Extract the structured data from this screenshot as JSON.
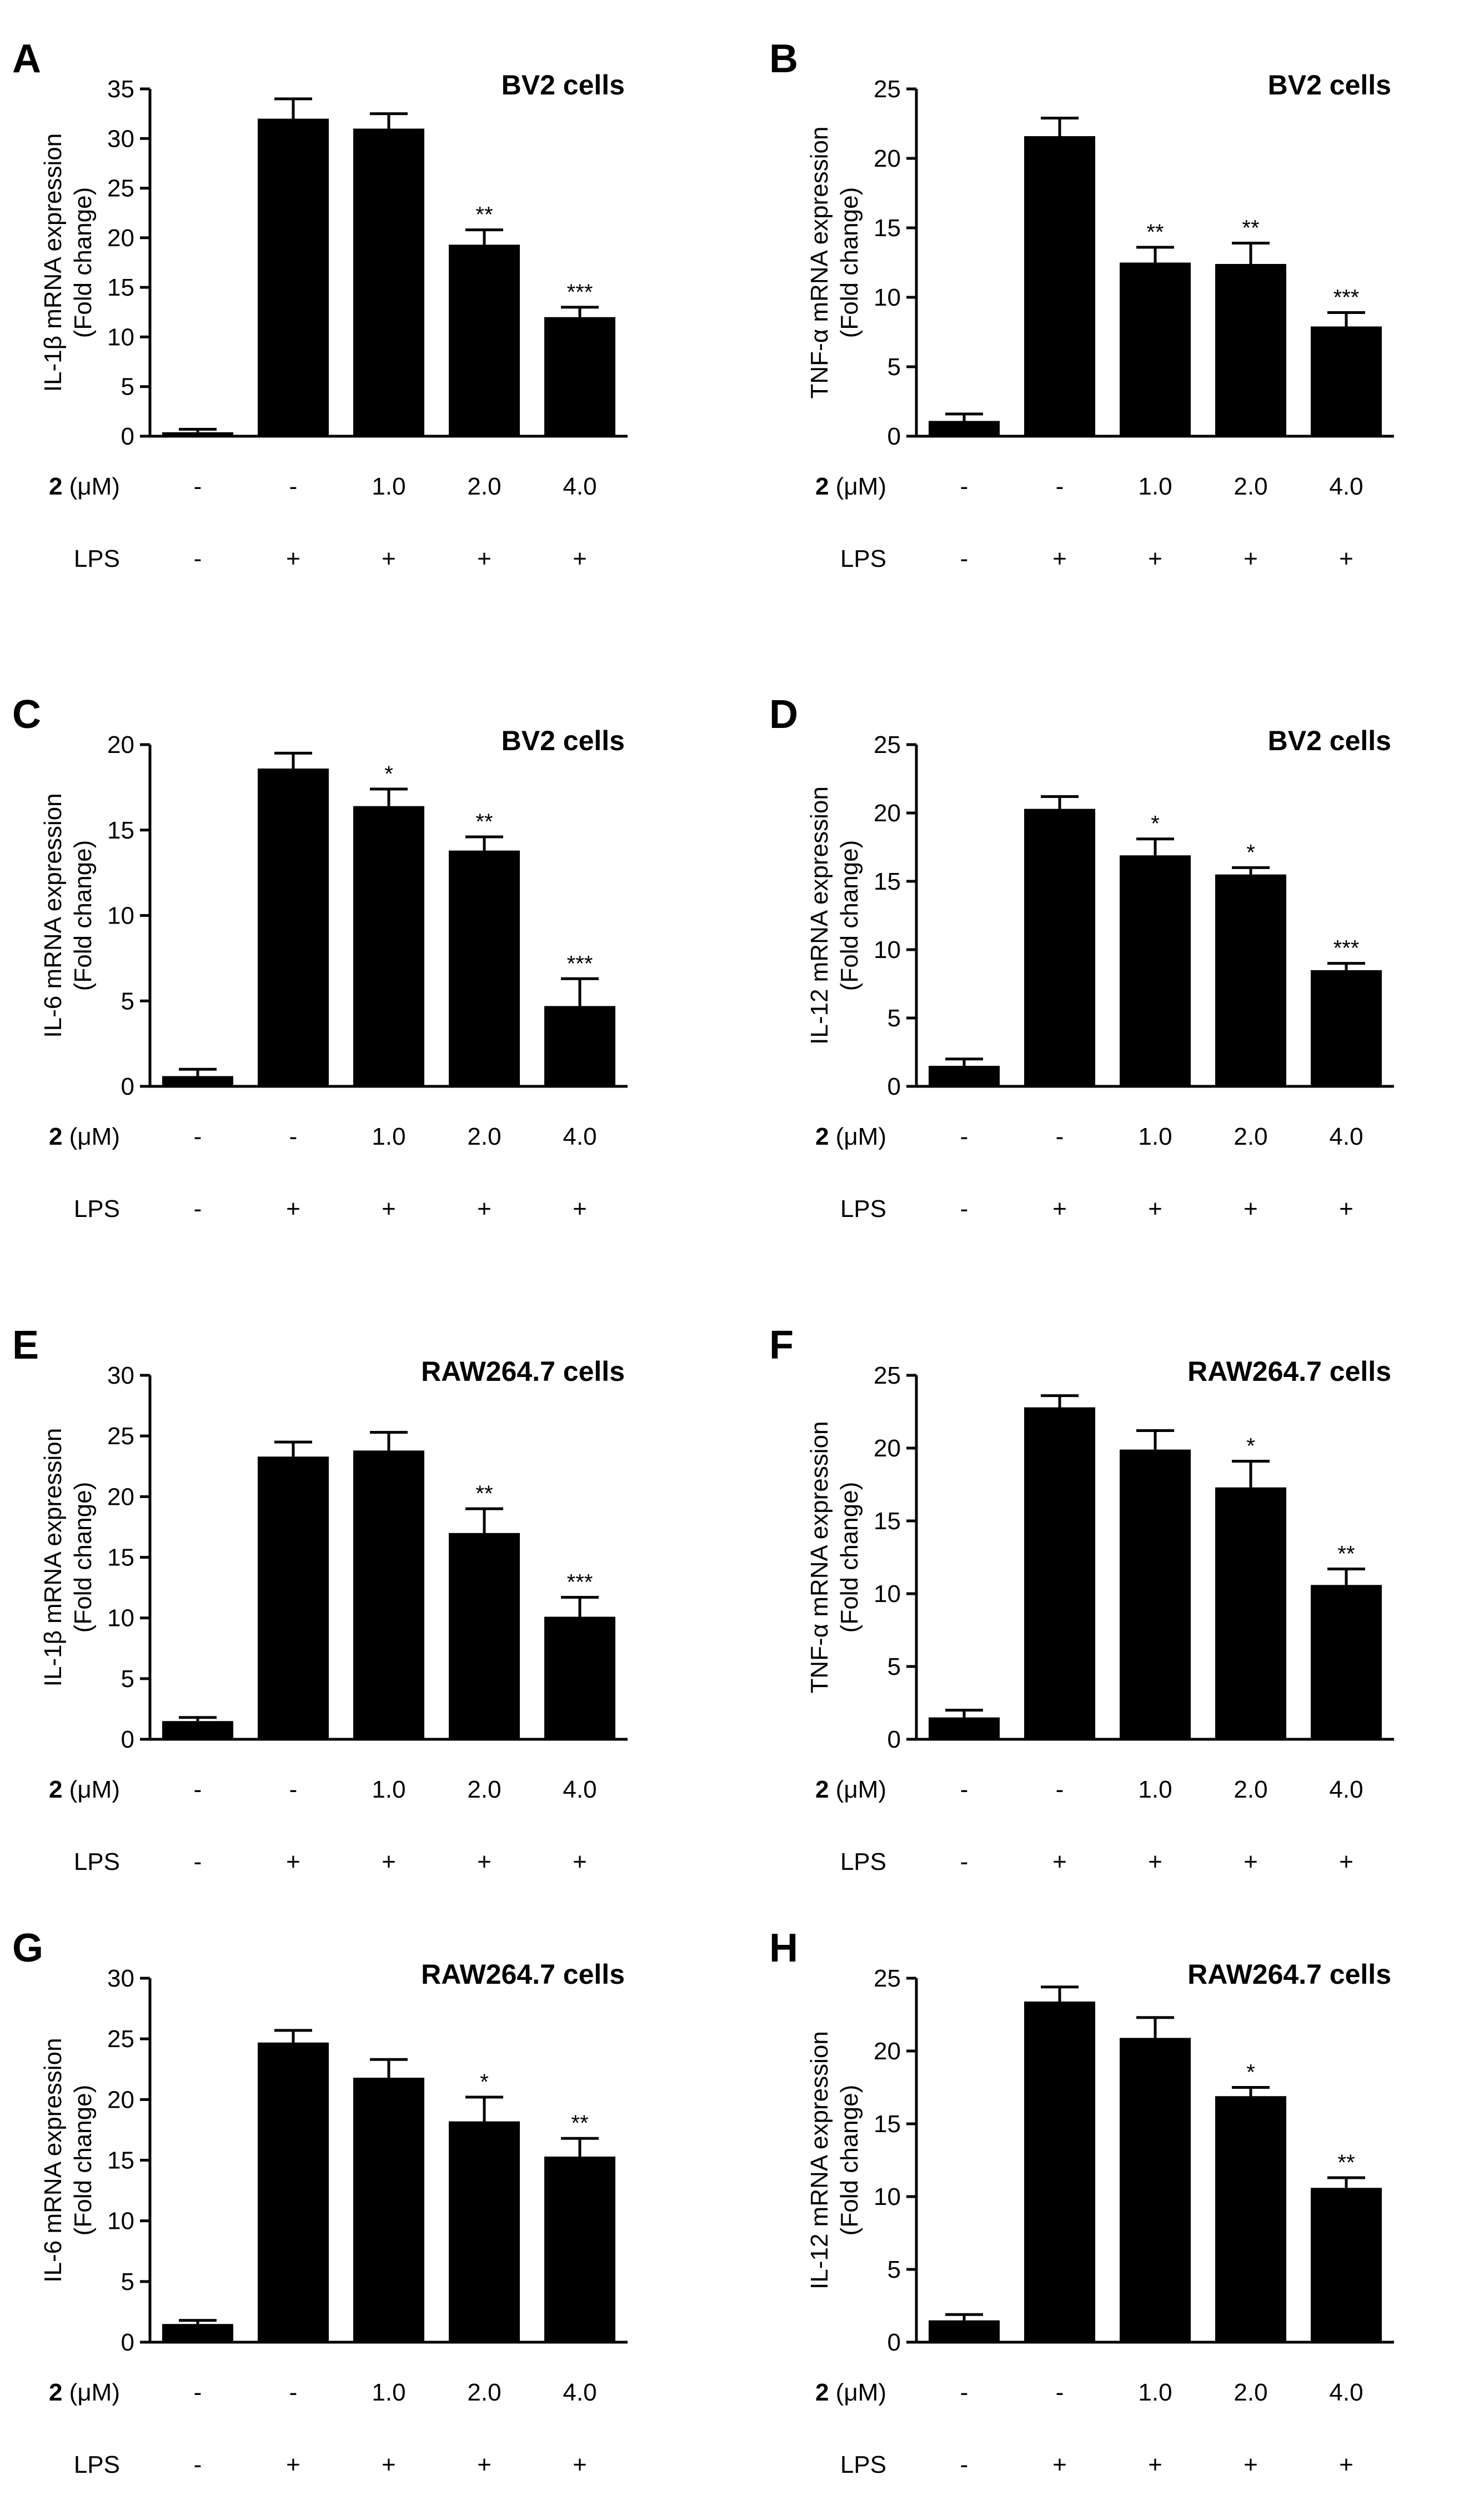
{
  "chart_data": [
    {
      "type": "bar",
      "panel": "A",
      "title": "BV2 cells",
      "ylabel_line1": "IL-1β mRNA expression",
      "ylabel_line2": "(Fold change)",
      "ylim": [
        0,
        35
      ],
      "yticks": [
        0,
        5,
        10,
        15,
        20,
        25,
        30,
        35
      ],
      "compound_label": "2",
      "compound_unit": " (μM)",
      "lps_label": "LPS",
      "compound_doses": [
        "-",
        "-",
        "1.0",
        "2.0",
        "4.0"
      ],
      "lps_states": [
        "-",
        "+",
        "+",
        "+",
        "+"
      ],
      "values": [
        0.4,
        32,
        31,
        19.3,
        12
      ],
      "errors": [
        0.3,
        2,
        1.5,
        1.5,
        1
      ],
      "significance": [
        "",
        "",
        "",
        "**",
        "***"
      ]
    },
    {
      "type": "bar",
      "panel": "B",
      "title": "BV2 cells",
      "ylabel_line1": "TNF-α mRNA expression",
      "ylabel_line2": "(Fold change)",
      "ylim": [
        0,
        25
      ],
      "yticks": [
        0,
        5,
        10,
        15,
        20,
        25
      ],
      "compound_label": "2",
      "compound_unit": " (μM)",
      "lps_label": "LPS",
      "compound_doses": [
        "-",
        "-",
        "1.0",
        "2.0",
        "4.0"
      ],
      "lps_states": [
        "-",
        "+",
        "+",
        "+",
        "+"
      ],
      "values": [
        1.1,
        21.6,
        12.5,
        12.4,
        7.9
      ],
      "errors": [
        0.5,
        1.3,
        1.1,
        1.5,
        1
      ],
      "significance": [
        "",
        "",
        "**",
        "**",
        "***"
      ]
    },
    {
      "type": "bar",
      "panel": "C",
      "title": "BV2 cells",
      "ylabel_line1": "IL-6 mRNA expression",
      "ylabel_line2": "(Fold change)",
      "ylim": [
        0,
        20
      ],
      "yticks": [
        0,
        5,
        10,
        15,
        20
      ],
      "compound_label": "2",
      "compound_unit": " (μM)",
      "lps_label": "LPS",
      "compound_doses": [
        "-",
        "-",
        "1.0",
        "2.0",
        "4.0"
      ],
      "lps_states": [
        "-",
        "+",
        "+",
        "+",
        "+"
      ],
      "values": [
        0.6,
        18.6,
        16.4,
        13.8,
        4.7
      ],
      "errors": [
        0.4,
        0.9,
        1,
        0.8,
        1.6
      ],
      "significance": [
        "",
        "",
        "*",
        "**",
        "***"
      ]
    },
    {
      "type": "bar",
      "panel": "D",
      "title": "BV2 cells",
      "ylabel_line1": "IL-12 mRNA expression",
      "ylabel_line2": "(Fold change)",
      "ylim": [
        0,
        25
      ],
      "yticks": [
        0,
        5,
        10,
        15,
        20,
        25
      ],
      "compound_label": "2",
      "compound_unit": " (μM)",
      "lps_label": "LPS",
      "compound_doses": [
        "-",
        "-",
        "1.0",
        "2.0",
        "4.0"
      ],
      "lps_states": [
        "-",
        "+",
        "+",
        "+",
        "+"
      ],
      "values": [
        1.5,
        20.3,
        16.9,
        15.5,
        8.5
      ],
      "errors": [
        0.5,
        0.9,
        1.2,
        0.5,
        0.5
      ],
      "significance": [
        "",
        "",
        "*",
        "*",
        "***"
      ]
    },
    {
      "type": "bar",
      "panel": "E",
      "title": "RAW264.7 cells",
      "ylabel_line1": "IL-1β mRNA expression",
      "ylabel_line2": "(Fold change)",
      "ylim": [
        0,
        30
      ],
      "yticks": [
        0,
        5,
        10,
        15,
        20,
        25,
        30
      ],
      "compound_label": "2",
      "compound_unit": " (μM)",
      "lps_label": "LPS",
      "compound_doses": [
        "-",
        "-",
        "1.0",
        "2.0",
        "4.0"
      ],
      "lps_states": [
        "-",
        "+",
        "+",
        "+",
        "+"
      ],
      "values": [
        1.5,
        23.3,
        23.8,
        17,
        10.1
      ],
      "errors": [
        0.3,
        1.2,
        1.5,
        2,
        1.6
      ],
      "significance": [
        "",
        "",
        "",
        "**",
        "***"
      ]
    },
    {
      "type": "bar",
      "panel": "F",
      "title": "RAW264.7 cells",
      "ylabel_line1": "TNF-α mRNA expression",
      "ylabel_line2": "(Fold change)",
      "ylim": [
        0,
        25
      ],
      "yticks": [
        0,
        5,
        10,
        15,
        20,
        25
      ],
      "compound_label": "2",
      "compound_unit": " (μM)",
      "lps_label": "LPS",
      "compound_doses": [
        "-",
        "-",
        "1.0",
        "2.0",
        "4.0"
      ],
      "lps_states": [
        "-",
        "+",
        "+",
        "+",
        "+"
      ],
      "values": [
        1.5,
        22.8,
        19.9,
        17.3,
        10.6
      ],
      "errors": [
        0.5,
        0.8,
        1.3,
        1.8,
        1.1
      ],
      "significance": [
        "",
        "",
        "",
        "*",
        "**"
      ]
    },
    {
      "type": "bar",
      "panel": "G",
      "title": "RAW264.7 cells",
      "ylabel_line1": "IL-6 mRNA expression",
      "ylabel_line2": "(Fold change)",
      "ylim": [
        0,
        30
      ],
      "yticks": [
        0,
        5,
        10,
        15,
        20,
        25,
        30
      ],
      "compound_label": "2",
      "compound_unit": " (μM)",
      "lps_label": "LPS",
      "compound_doses": [
        "-",
        "-",
        "1.0",
        "2.0",
        "4.0"
      ],
      "lps_states": [
        "-",
        "+",
        "+",
        "+",
        "+"
      ],
      "values": [
        1.5,
        24.7,
        21.8,
        18.2,
        15.3
      ],
      "errors": [
        0.3,
        1,
        1.5,
        2,
        1.5
      ],
      "significance": [
        "",
        "",
        "",
        "*",
        "**"
      ]
    },
    {
      "type": "bar",
      "panel": "H",
      "title": "RAW264.7 cells",
      "ylabel_line1": "IL-12 mRNA expression",
      "ylabel_line2": "(Fold change)",
      "ylim": [
        0,
        25
      ],
      "yticks": [
        0,
        5,
        10,
        15,
        20,
        25
      ],
      "compound_label": "2",
      "compound_unit": " (μM)",
      "lps_label": "LPS",
      "compound_doses": [
        "-",
        "-",
        "1.0",
        "2.0",
        "4.0"
      ],
      "lps_states": [
        "-",
        "+",
        "+",
        "+",
        "+"
      ],
      "values": [
        1.5,
        23.4,
        20.9,
        16.9,
        10.6
      ],
      "errors": [
        0.4,
        1,
        1.4,
        0.6,
        0.7
      ],
      "significance": [
        "",
        "",
        "",
        "*",
        "**"
      ]
    }
  ]
}
